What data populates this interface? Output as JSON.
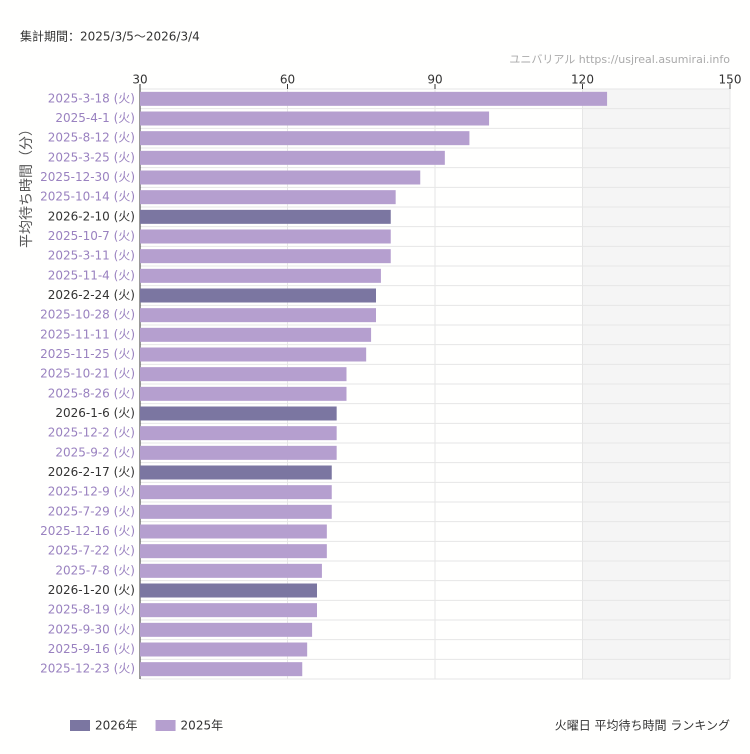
{
  "chart_data": {
    "type": "bar",
    "orientation": "horizontal",
    "period": "集計期間：2025/3/5〜2026/3/4",
    "watermark": "ユニバリアル  https://usjreal.asumirai.info",
    "title": "火曜日 平均待ち時間 ランキング",
    "ylabel": "平均待ち時間（分）",
    "categories": [
      "2025-3-18 (火)",
      "2025-4-1 (火)",
      "2025-8-12 (火)",
      "2025-3-25 (火)",
      "2025-12-30 (火)",
      "2025-10-14 (火)",
      "2026-2-10 (火)",
      "2025-10-7 (火)",
      "2025-3-11 (火)",
      "2025-11-4 (火)",
      "2026-2-24 (火)",
      "2025-10-28 (火)",
      "2025-11-11 (火)",
      "2025-11-25 (火)",
      "2025-10-21 (火)",
      "2025-8-26 (火)",
      "2026-1-6 (火)",
      "2025-12-2 (火)",
      "2025-9-2 (火)",
      "2026-2-17 (火)",
      "2025-12-9 (火)",
      "2025-7-29 (火)",
      "2025-12-16 (火)",
      "2025-7-22 (火)",
      "2025-7-8 (火)",
      "2026-1-20 (火)",
      "2025-8-19 (火)",
      "2025-9-30 (火)",
      "2025-9-16 (火)",
      "2025-12-23 (火)"
    ],
    "series": [
      {
        "name": "2026年",
        "color": "#7b76a1",
        "label_color": "#333333",
        "values": [
          null,
          null,
          null,
          null,
          null,
          null,
          81,
          null,
          null,
          null,
          78,
          null,
          null,
          null,
          null,
          null,
          70,
          null,
          null,
          69,
          null,
          null,
          null,
          null,
          null,
          66,
          null,
          null,
          null,
          null
        ]
      },
      {
        "name": "2025年",
        "color": "#b59fcf",
        "label_color": "#9a82c0",
        "values": [
          125,
          101,
          97,
          92,
          87,
          82,
          null,
          81,
          81,
          79,
          null,
          78,
          77,
          76,
          72,
          72,
          null,
          70,
          70,
          null,
          69,
          69,
          68,
          68,
          67,
          null,
          66,
          65,
          64,
          63
        ]
      }
    ],
    "xlim": [
      30,
      150
    ],
    "xticks": [
      30,
      60,
      90,
      120,
      150
    ],
    "grid": true
  }
}
